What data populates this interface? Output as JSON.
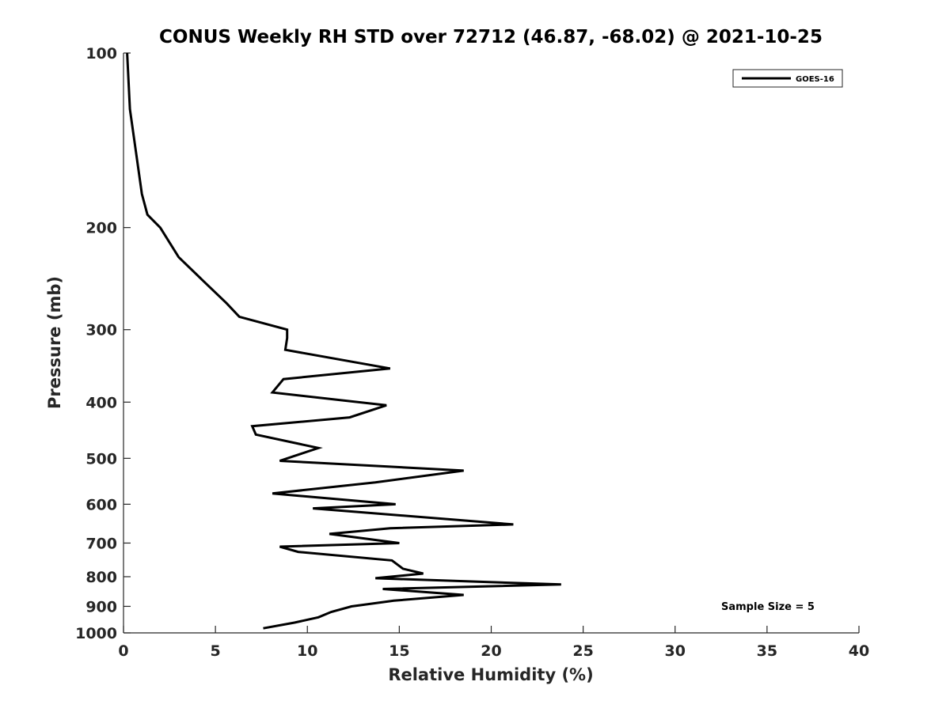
{
  "chart_data": {
    "type": "line",
    "title": "CONUS Weekly RH STD over 72712 (46.87, -68.02) @ 2021-10-25",
    "xlabel": "Relative Humidity (%)",
    "ylabel": "Pressure (mb)",
    "xlim": [
      0,
      40
    ],
    "ylim": [
      100,
      1000
    ],
    "yscale": "log",
    "y_reversed": true,
    "grid": false,
    "xticks": [
      0,
      5,
      10,
      15,
      20,
      25,
      30,
      35,
      40
    ],
    "yticks": [
      100,
      200,
      300,
      400,
      500,
      600,
      700,
      800,
      900,
      1000
    ],
    "legend_position": "top-right",
    "annotation": "Sample Size = 5",
    "colors": {
      "line": "#000000",
      "axis": "#262626"
    },
    "series": [
      {
        "name": "GOES-16",
        "x": [
          0.2,
          0.35,
          0.7,
          1.0,
          1.3,
          2.0,
          3.0,
          4.5,
          5.6,
          6.3,
          8.9,
          8.9,
          8.8,
          14.5,
          8.7,
          8.1,
          14.3,
          12.3,
          7.0,
          7.2,
          10.6,
          8.5,
          18.5,
          13.7,
          8.1,
          14.8,
          10.3,
          21.2,
          14.5,
          11.2,
          15.0,
          8.5,
          9.5,
          14.6,
          15.2,
          16.3,
          13.7,
          23.8,
          14.1,
          18.5,
          14.7,
          12.4,
          11.3,
          10.6,
          9.3,
          7.6
        ],
        "y": [
          100,
          125,
          150,
          175,
          190,
          200,
          225,
          250,
          270,
          285,
          300,
          310,
          325,
          350,
          365,
          385,
          405,
          425,
          440,
          455,
          480,
          505,
          525,
          550,
          575,
          600,
          610,
          650,
          660,
          675,
          700,
          710,
          725,
          750,
          775,
          790,
          805,
          825,
          840,
          860,
          880,
          900,
          920,
          940,
          960,
          982
        ]
      }
    ]
  }
}
